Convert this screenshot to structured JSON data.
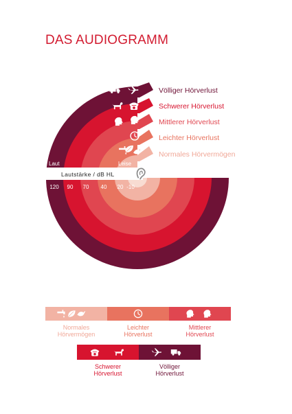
{
  "title": "DAS AUDIOGRAMM",
  "colors": {
    "accent": "#d21b30",
    "ring_voellig": "#6e1236",
    "ring_schwer": "#d7142f",
    "ring_mittel": "#e04650",
    "ring_leicht": "#e8735f",
    "ring_normal": "#f2b3a4",
    "center": "#f8dcd2"
  },
  "side_labels": {
    "laut": "Laut",
    "leise": "Leise"
  },
  "axis": {
    "title": "Lautstärke / dB HL",
    "ticks": [
      "120",
      "90",
      "70",
      "40",
      "20",
      "-10"
    ]
  },
  "levels": [
    {
      "label": "Völliger Hörverlust",
      "color": "#6e1236",
      "text_color": "#6e1236",
      "icons": [
        "truck-icon",
        "airplane-icon"
      ]
    },
    {
      "label": "Schwerer Hörverlust",
      "color": "#d7142f",
      "text_color": "#d7142f",
      "icons": [
        "dog-icon",
        "telephone-icon"
      ]
    },
    {
      "label": "Mittlerer Hörverlust",
      "color": "#e04650",
      "text_color": "#e04650",
      "icons": [
        "speaking-head-icon",
        "speaking-head-icon"
      ]
    },
    {
      "label": "Leichter Hörverlust",
      "color": "#e8735f",
      "text_color": "#e8735f",
      "icons": [
        "clock-icon"
      ]
    },
    {
      "label": "Normales Hörvermögen",
      "color": "#f2b3a4",
      "text_color": "#f0a898",
      "icons": [
        "dripping-faucet-icon",
        "leaf-icon",
        "bird-icon"
      ]
    }
  ],
  "legend": {
    "row1": [
      {
        "label": "Normales\nHörvermögen",
        "color": "#f2b3a4",
        "text_color": "#f0a898",
        "icons": [
          "dripping-faucet-icon",
          "leaf-icon",
          "bird-icon"
        ]
      },
      {
        "label": "Leichter\nHörverlust",
        "color": "#e8735f",
        "text_color": "#e8735f",
        "icons": [
          "clock-icon"
        ]
      },
      {
        "label": "Mittlerer\nHörverlust",
        "color": "#e04650",
        "text_color": "#e04650",
        "icons": [
          "speaking-head-icon",
          "speaking-head-icon"
        ]
      }
    ],
    "row2": [
      {
        "label": "Schwerer\nHörverlust",
        "color": "#d7142f",
        "text_color": "#d7142f",
        "icons": [
          "telephone-icon",
          "dog-icon"
        ]
      },
      {
        "label": "Völliger\nHörverlust",
        "color": "#6e1236",
        "text_color": "#6e1236",
        "icons": [
          "airplane-icon",
          "truck-icon"
        ]
      }
    ]
  }
}
